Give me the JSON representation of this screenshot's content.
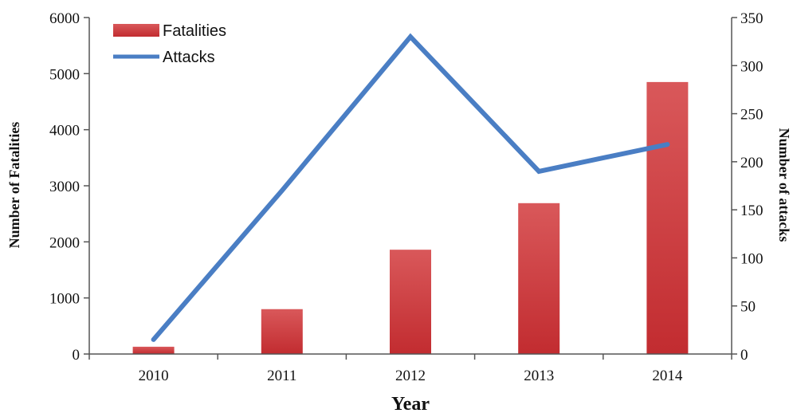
{
  "chart_data": {
    "type": "bar",
    "categories": [
      "2010",
      "2011",
      "2012",
      "2013",
      "2014"
    ],
    "series": [
      {
        "name": "Fatalities",
        "type": "bar",
        "axis": "left",
        "color": "#c9383b",
        "values": [
          130,
          800,
          1860,
          2690,
          4850
        ]
      },
      {
        "name": "Attacks",
        "type": "line",
        "axis": "right",
        "color": "#4a7ec4",
        "values": [
          15,
          170,
          330,
          190,
          218
        ]
      }
    ],
    "title": "",
    "xlabel": "Year",
    "ylabel": "Number of Fatalities",
    "y2label": "Number of attacks",
    "ylim": [
      0,
      6000
    ],
    "y2lim": [
      0,
      350
    ],
    "yticks": [
      0,
      1000,
      2000,
      3000,
      4000,
      5000,
      6000
    ],
    "y2ticks": [
      0,
      50,
      100,
      150,
      200,
      250,
      300,
      350
    ],
    "grid": false,
    "legend": "top-left"
  }
}
